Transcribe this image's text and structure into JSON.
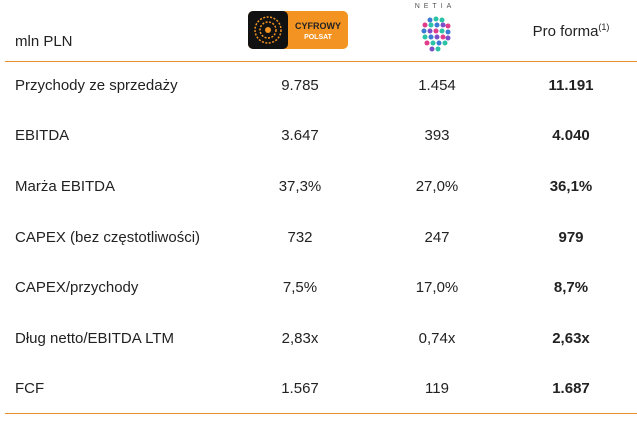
{
  "header": {
    "unit_label": "mln PLN",
    "col1_logo": "CYFROWY POLSAT",
    "col2_logo": "NETIA",
    "col3_label": "Pro forma",
    "col3_footnote": "(1)"
  },
  "colors": {
    "accent": "#e8932e",
    "polsat_orange": "#f39321"
  },
  "rows": [
    {
      "label": "Przychody ze sprzedaży",
      "polsat": "9.785",
      "netia": "1.454",
      "pro_forma": "11.191"
    },
    {
      "label": "EBITDA",
      "polsat": "3.647",
      "netia": "393",
      "pro_forma": "4.040"
    },
    {
      "label": "Marża EBITDA",
      "polsat": "37,3%",
      "netia": "27,0%",
      "pro_forma": "36,1%"
    },
    {
      "label": "CAPEX (bez częstotliwości)",
      "polsat": "732",
      "netia": "247",
      "pro_forma": "979"
    },
    {
      "label": "CAPEX/przychody",
      "polsat": "7,5%",
      "netia": "17,0%",
      "pro_forma": "8,7%"
    },
    {
      "label": "Dług netto/EBITDA LTM",
      "polsat": "2,83x",
      "netia": "0,74x",
      "pro_forma": "2,63x"
    },
    {
      "label": "FCF",
      "polsat": "1.567",
      "netia": "119",
      "pro_forma": "1.687"
    }
  ]
}
